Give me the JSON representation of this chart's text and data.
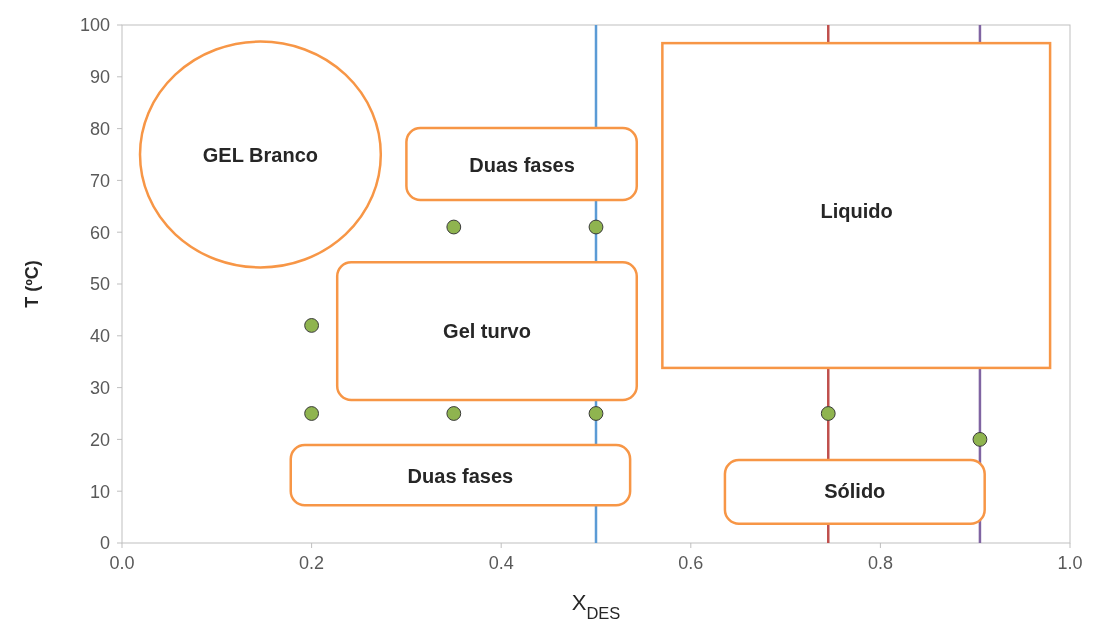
{
  "chart_data": {
    "type": "scatter",
    "xlabel": "X$_{DES}$",
    "ylabel": "T (ºC)",
    "x": [
      0.2,
      0.2,
      0.35,
      0.35,
      0.5,
      0.5,
      0.745,
      0.905
    ],
    "values": [
      42,
      25,
      61,
      25,
      61,
      25,
      25,
      20
    ],
    "color": "#8fb44f",
    "marker": "circle",
    "grid": false,
    "xlim": [
      0,
      1
    ],
    "xticks": [
      {
        "value": 0,
        "label": "0.0"
      },
      {
        "value": 0.2,
        "label": "0.2"
      },
      {
        "value": 0.4,
        "label": "0.4"
      },
      {
        "value": 0.6,
        "label": "0.6"
      },
      {
        "value": 0.8,
        "label": "0.8"
      },
      {
        "value": 1,
        "label": "1.0"
      }
    ],
    "ylim": [
      0,
      100
    ],
    "yticks": [
      0,
      10,
      20,
      30,
      40,
      50,
      60,
      70,
      80,
      90,
      100
    ],
    "ref_lines": [
      {
        "axis": "x",
        "value": 0.5,
        "color": "#5b9bd5"
      },
      {
        "axis": "x",
        "value": 0.745,
        "color": "#c0504d"
      },
      {
        "axis": "x",
        "value": 0.905,
        "color": "#8064a2"
      }
    ],
    "annotations": [
      "GEL Branco",
      "Duas fases",
      "Gel turvo",
      "Liquido",
      "Duas fases",
      "Sólido"
    ]
  }
}
